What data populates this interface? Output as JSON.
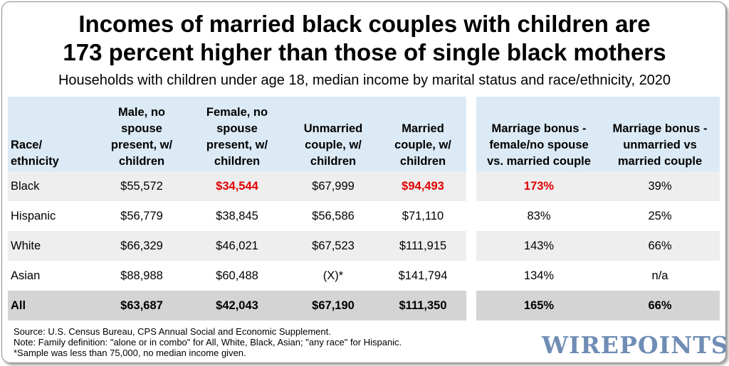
{
  "title_line1": "Incomes of married black couples with children are",
  "title_line2": "173 percent higher than those of single black mothers",
  "subtitle": "Households with children under age 18, median income by marital status and race/ethnicity, 2020",
  "chart_data": {
    "type": "table",
    "columns": [
      "Race/ ethnicity",
      "Male, no spouse present, w/ children",
      "Female, no spouse present, w/ children",
      "Unmarried couple, w/ children",
      "Married couple, w/ children",
      "Marriage bonus - female/no spouse vs. married couple",
      "Marriage bonus - unmarried vs married couple"
    ],
    "header_lines": [
      [
        "Race/",
        "ethnicity"
      ],
      [
        "Male, no",
        "spouse",
        "present, w/",
        "children"
      ],
      [
        "Female, no",
        "spouse",
        "present, w/",
        "children"
      ],
      [
        "Unmarried",
        "couple, w/",
        "children"
      ],
      [
        "Married",
        "couple, w/",
        "children"
      ],
      [
        "Marriage bonus -",
        "female/no spouse",
        "vs. married couple"
      ],
      [
        "Marriage bonus -",
        "unmarried vs",
        "married couple"
      ]
    ],
    "rows": [
      [
        "Black",
        "$55,572",
        "$34,544",
        "$67,999",
        "$94,493",
        "173%",
        "39%"
      ],
      [
        "Hispanic",
        "$56,779",
        "$38,845",
        "$56,586",
        "$71,110",
        "83%",
        "25%"
      ],
      [
        "White",
        "$66,329",
        "$46,021",
        "$67,523",
        "$111,915",
        "143%",
        "66%"
      ],
      [
        "Asian",
        "$88,988",
        "$60,488",
        "(X)*",
        "$141,794",
        "134%",
        "n/a"
      ],
      [
        "All",
        "$63,687",
        "$42,043",
        "$67,190",
        "$111,350",
        "165%",
        "66%"
      ]
    ],
    "highlighted_cells": [
      [
        0,
        2
      ],
      [
        0,
        4
      ],
      [
        0,
        5
      ]
    ],
    "highlight_color": "#e00000"
  },
  "footnotes": [
    "Source: U.S. Census Bureau, CPS Annual Social and Economic Supplement.",
    "Note: Family definition: \"alone or in combo\" for All, White, Black, Asian; \"any race\" for Hispanic.",
    "*Sample was less than 75,000, no median income given."
  ],
  "logo_text": "WIREPOINTS",
  "colors": {
    "header_bg": "#dbeaf5",
    "row_shade": "#eeeeee",
    "total_row": "#d4d4d4",
    "logo": "#6f8db4"
  }
}
